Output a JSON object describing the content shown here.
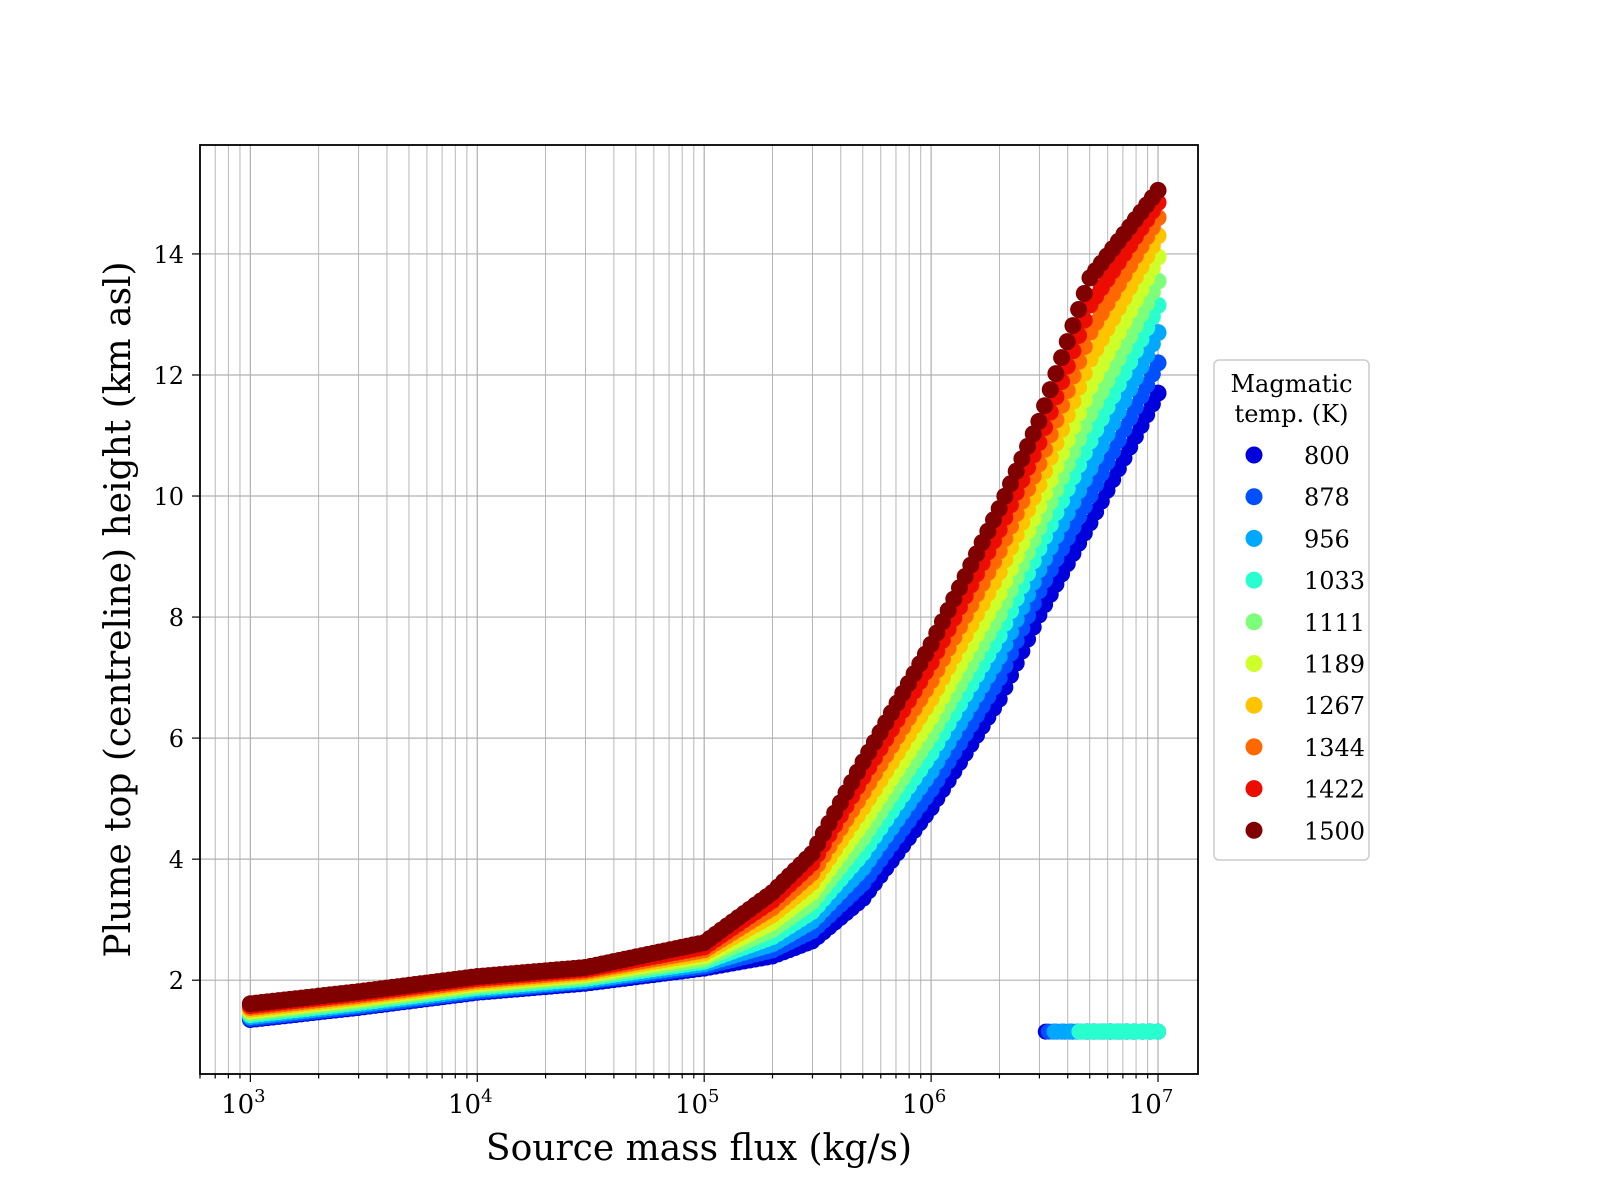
{
  "chart_data": {
    "type": "scatter",
    "xlabel": "Source mass flux (kg/s)",
    "ylabel": "Plume top (centreline) height (km asl)",
    "x_scale": "log",
    "xlim": [
      600,
      15000000
    ],
    "ylim": [
      0.45,
      15.8
    ],
    "x_ticks": [
      1000,
      10000,
      100000,
      1000000,
      10000000
    ],
    "x_tick_labels": [
      {
        "base": "10",
        "exp": "3"
      },
      {
        "base": "10",
        "exp": "4"
      },
      {
        "base": "10",
        "exp": "5"
      },
      {
        "base": "10",
        "exp": "6"
      },
      {
        "base": "10",
        "exp": "7"
      }
    ],
    "y_ticks": [
      2,
      4,
      6,
      8,
      10,
      12,
      14
    ],
    "y_tick_labels": [
      "2",
      "4",
      "6",
      "8",
      "10",
      "12",
      "14"
    ],
    "grid": true,
    "legend": {
      "title_lines": [
        "Magmatic",
        "temp. (K)"
      ],
      "placement": "outside right"
    },
    "series": [
      {
        "name": "800",
        "color": "#0000dd",
        "low_x": [
          3200000,
          10000000
        ],
        "low_y": 1.15,
        "x": [
          1000,
          3000,
          10000,
          30000,
          100000,
          200000,
          300000,
          500000,
          1000000,
          2000000,
          3000000,
          5000000,
          10000000
        ],
        "y": [
          1.35,
          1.55,
          1.8,
          1.95,
          2.2,
          2.4,
          2.65,
          3.35,
          4.85,
          6.65,
          8.05,
          9.55,
          11.7
        ]
      },
      {
        "name": "878",
        "color": "#0050ff",
        "low_x": [
          3300000,
          10000000
        ],
        "low_y": 1.15,
        "x": [
          1000,
          3000,
          10000,
          30000,
          100000,
          200000,
          300000,
          500000,
          1000000,
          2000000,
          3000000,
          5000000,
          10000000
        ],
        "y": [
          1.37,
          1.57,
          1.82,
          1.98,
          2.23,
          2.5,
          2.82,
          3.6,
          5.15,
          7.0,
          8.45,
          10.0,
          12.2
        ]
      },
      {
        "name": "956",
        "color": "#00a8ff",
        "low_x": [
          3500000,
          10000000
        ],
        "low_y": 1.15,
        "x": [
          1000,
          3000,
          10000,
          30000,
          100000,
          200000,
          300000,
          500000,
          1000000,
          2000000,
          3000000,
          5000000,
          10000000
        ],
        "y": [
          1.4,
          1.6,
          1.85,
          2.0,
          2.27,
          2.6,
          2.98,
          3.85,
          5.45,
          7.35,
          8.8,
          10.45,
          12.7
        ]
      },
      {
        "name": "1033",
        "color": "#29ffce",
        "low_x": [
          4500000,
          10000000
        ],
        "low_y": 1.15,
        "x": [
          1000,
          3000,
          10000,
          30000,
          100000,
          200000,
          300000,
          500000,
          1000000,
          2000000,
          3000000,
          5000000,
          10000000
        ],
        "y": [
          1.43,
          1.63,
          1.88,
          2.03,
          2.31,
          2.72,
          3.14,
          4.1,
          5.75,
          7.7,
          9.15,
          10.9,
          13.15
        ]
      },
      {
        "name": "1111",
        "color": "#7dff7a",
        "x": [
          1000,
          3000,
          10000,
          30000,
          100000,
          200000,
          300000,
          500000,
          1000000,
          2000000,
          3000000,
          5000000,
          10000000
        ],
        "y": [
          1.46,
          1.66,
          1.91,
          2.06,
          2.35,
          2.84,
          3.3,
          4.35,
          6.05,
          8.05,
          9.5,
          11.35,
          13.55
        ]
      },
      {
        "name": "1189",
        "color": "#ceff29",
        "x": [
          1000,
          3000,
          10000,
          30000,
          100000,
          200000,
          300000,
          500000,
          1000000,
          2000000,
          3000000,
          5000000,
          10000000
        ],
        "y": [
          1.49,
          1.69,
          1.94,
          2.09,
          2.4,
          2.96,
          3.46,
          4.6,
          6.35,
          8.4,
          9.85,
          11.8,
          13.95
        ]
      },
      {
        "name": "1267",
        "color": "#ffc400",
        "x": [
          1000,
          3000,
          10000,
          30000,
          100000,
          200000,
          300000,
          500000,
          1000000,
          2000000,
          3000000,
          5000000,
          10000000
        ],
        "y": [
          1.52,
          1.72,
          1.97,
          2.12,
          2.45,
          3.08,
          3.62,
          4.85,
          6.65,
          8.75,
          10.2,
          12.25,
          14.3
        ]
      },
      {
        "name": "1344",
        "color": "#ff6800",
        "x": [
          1000,
          3000,
          10000,
          30000,
          100000,
          200000,
          300000,
          500000,
          1000000,
          2000000,
          3000000,
          5000000,
          10000000
        ],
        "y": [
          1.55,
          1.75,
          2.0,
          2.15,
          2.5,
          3.2,
          3.78,
          5.1,
          6.95,
          9.1,
          10.55,
          12.7,
          14.6
        ]
      },
      {
        "name": "1422",
        "color": "#ed0d00",
        "x": [
          1000,
          3000,
          10000,
          30000,
          100000,
          200000,
          300000,
          500000,
          1000000,
          2000000,
          3000000,
          5000000,
          10000000
        ],
        "y": [
          1.58,
          1.78,
          2.03,
          2.18,
          2.55,
          3.32,
          3.94,
          5.35,
          7.25,
          9.45,
          10.9,
          13.15,
          14.85
        ]
      },
      {
        "name": "1500",
        "color": "#800000",
        "x": [
          1000,
          3000,
          10000,
          30000,
          100000,
          200000,
          300000,
          500000,
          1000000,
          2000000,
          3000000,
          5000000,
          10000000
        ],
        "y": [
          1.61,
          1.81,
          2.06,
          2.21,
          2.62,
          3.45,
          4.1,
          5.6,
          7.55,
          9.8,
          11.25,
          13.6,
          15.05
        ]
      }
    ]
  }
}
